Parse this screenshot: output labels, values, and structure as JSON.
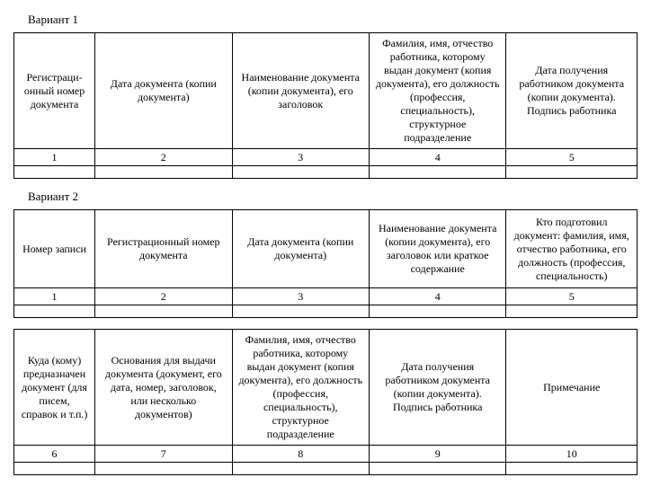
{
  "variant1": {
    "title": "Вариант 1",
    "table": {
      "headers": [
        "Регистраци-онный номер документа",
        "Дата документа (копии документа)",
        "Наименование документа (копии документа), его заголовок",
        "Фамилия, имя, отчество работника, которому выдан документ (копия документа), его должность (профессия, специальность), структурное подразделение",
        "Дата получения работником документа (копии документа). Подпись работника"
      ],
      "numbers": [
        "1",
        "2",
        "3",
        "4",
        "5"
      ]
    }
  },
  "variant2": {
    "title": "Вариант 2",
    "table1": {
      "headers": [
        "Номер записи",
        "Регистрационный номер документа",
        "Дата документа (копии документа)",
        "Наименование документа (копии документа), его заголовок или краткое содержание",
        "Кто подготовил документ: фамилия, имя, отчество работника,  его должность (профессия, специальность)"
      ],
      "numbers": [
        "1",
        "2",
        "3",
        "4",
        "5"
      ]
    },
    "table2": {
      "headers": [
        "Куда (кому) предназначен документ (для писем, справок и т.п.)",
        "Основания для выдачи документа (документ, его дата, номер, заголовок, или несколько документов)",
        "Фамилия, имя, отчество работника, которому выдан документ (копия документа), его должность (профессия, специальность), структурное подразделение",
        "Дата получения работником документа (копии документа). Подпись работника",
        "Примечание"
      ],
      "numbers": [
        "6",
        "7",
        "8",
        "9",
        "10"
      ]
    }
  },
  "colwidths": [
    "13%",
    "22%",
    "22%",
    "22%",
    "21%"
  ]
}
